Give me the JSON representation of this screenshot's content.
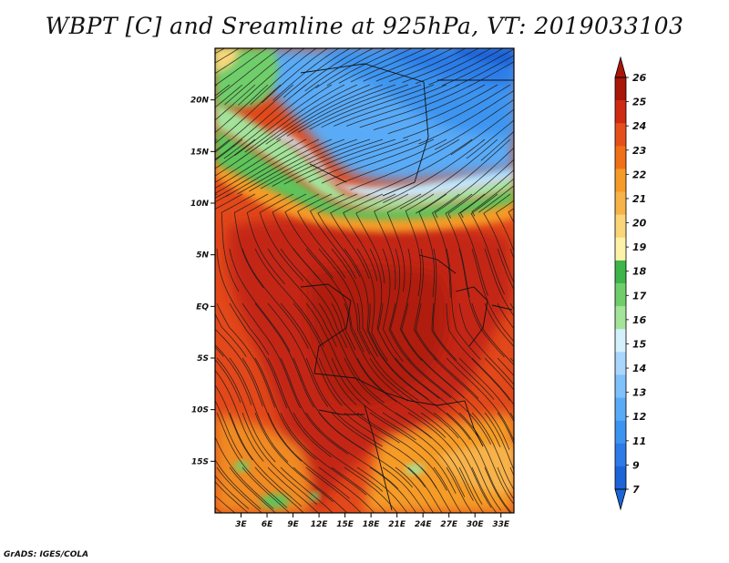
{
  "title": "WBPT [C] and Sreamline at 925hPa, VT: 2019033103",
  "footer": "GrADS: IGES/COLA",
  "map": {
    "lat_labels": [
      "20N",
      "15N",
      "10N",
      "5N",
      "EQ",
      "5S",
      "10S",
      "15S"
    ],
    "lat_values": [
      20,
      15,
      10,
      5,
      0,
      -5,
      -10,
      -15
    ],
    "lon_labels": [
      "3E",
      "6E",
      "9E",
      "12E",
      "15E",
      "18E",
      "21E",
      "24E",
      "27E",
      "30E",
      "33E"
    ],
    "lon_values": [
      3,
      6,
      9,
      12,
      15,
      18,
      21,
      24,
      27,
      30,
      33
    ],
    "lon_range": [
      0,
      34.5
    ],
    "lat_range": [
      -20,
      25
    ],
    "variable": "Wet-bulb potential temperature",
    "overlay": "Streamlines"
  },
  "colorbar": {
    "labels": [
      "7",
      "9",
      "11",
      "12",
      "13",
      "14",
      "15",
      "16",
      "17",
      "18",
      "19",
      "20",
      "21",
      "22",
      "23",
      "24",
      "25",
      "26"
    ],
    "colors": [
      "#1c64d7",
      "#2c7be8",
      "#3c94f0",
      "#5aabf7",
      "#7fc1fa",
      "#a8d6fc",
      "#d4f0fb",
      "#a3e39a",
      "#6fce6a",
      "#3db54a",
      "#fdf2a8",
      "#fbd57a",
      "#f7b24a",
      "#f59b28",
      "#ef7017",
      "#e5501a",
      "#cf2a12",
      "#a81708"
    ]
  },
  "colors": {
    "hot": "#c82a14",
    "warm": "#e8521a",
    "mild": "#f5a032",
    "green": "#5fc45a",
    "cool": "#5aabf7",
    "cold": "#1c64d7"
  }
}
